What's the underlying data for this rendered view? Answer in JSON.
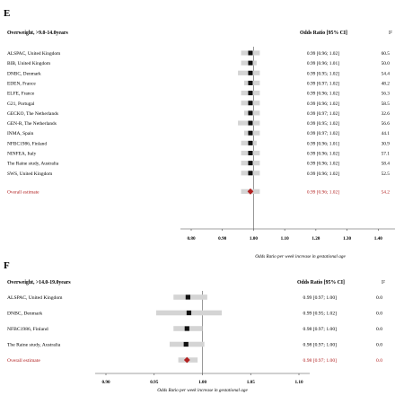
{
  "chart_data": [
    {
      "type": "forest",
      "panel_label": "E",
      "title": "Overweight, >9.0-14.0years",
      "col_header": "Odds Ratio [95% CI]",
      "i2_header": "I²",
      "xlabel": "Odds Ratio per week increase in gestational age",
      "xlim": [
        0.7,
        1.6
      ],
      "ticks": [
        "0.80",
        "0.90",
        "1.00",
        "1.10",
        "1.20",
        "1.30",
        "1.40",
        "1.50"
      ],
      "reference_line": 1.0,
      "studies": [
        {
          "name": "ALSPAC, United Kingdom",
          "or": 0.99,
          "lo": 0.96,
          "hi": 1.02,
          "ci_text": "0.99 [0.96; 1.02]",
          "i2": "60.5"
        },
        {
          "name": "BIB, United Kingdom",
          "or": 0.99,
          "lo": 0.96,
          "hi": 1.01,
          "ci_text": "0.99 [0.96; 1.01]",
          "i2": "50.0"
        },
        {
          "name": "DNBC, Denmark",
          "or": 0.99,
          "lo": 0.95,
          "hi": 1.02,
          "ci_text": "0.99 [0.95; 1.02]",
          "i2": "54.4"
        },
        {
          "name": "EDEN, France",
          "or": 0.99,
          "lo": 0.97,
          "hi": 1.02,
          "ci_text": "0.99 [0.97; 1.02]",
          "i2": "48.2"
        },
        {
          "name": "ELFE, France",
          "or": 0.99,
          "lo": 0.96,
          "hi": 1.02,
          "ci_text": "0.99 [0.96; 1.02]",
          "i2": "56.3"
        },
        {
          "name": "G21, Portugal",
          "or": 0.99,
          "lo": 0.96,
          "hi": 1.02,
          "ci_text": "0.99 [0.96; 1.02]",
          "i2": "58.5"
        },
        {
          "name": "GECKO, The Netherlands",
          "or": 0.99,
          "lo": 0.97,
          "hi": 1.02,
          "ci_text": "0.99 [0.97; 1.02]",
          "i2": "32.6"
        },
        {
          "name": "GEN-R, The Netherlands",
          "or": 0.99,
          "lo": 0.95,
          "hi": 1.02,
          "ci_text": "0.99 [0.95; 1.02]",
          "i2": "56.6"
        },
        {
          "name": "INMA, Spain",
          "or": 0.99,
          "lo": 0.97,
          "hi": 1.02,
          "ci_text": "0.99 [0.97; 1.02]",
          "i2": "44.1"
        },
        {
          "name": "NFBC1986, Finland",
          "or": 0.99,
          "lo": 0.96,
          "hi": 1.01,
          "ci_text": "0.99 [0.96; 1.01]",
          "i2": "30.9"
        },
        {
          "name": "NINFEA, Italy",
          "or": 0.99,
          "lo": 0.96,
          "hi": 1.02,
          "ci_text": "0.99 [0.96; 1.02]",
          "i2": "57.1"
        },
        {
          "name": "The Raine study, Australia",
          "or": 0.99,
          "lo": 0.96,
          "hi": 1.02,
          "ci_text": "0.99 [0.96; 1.02]",
          "i2": "58.4"
        },
        {
          "name": "SWS, United Kingdom",
          "or": 0.99,
          "lo": 0.96,
          "hi": 1.02,
          "ci_text": "0.99 [0.96; 1.02]",
          "i2": "52.5"
        }
      ],
      "overall": {
        "name": "Overall estimate",
        "or": 0.99,
        "lo": 0.96,
        "hi": 1.02,
        "ci_text": "0.99 [0.96; 1.02]",
        "i2": "54.2"
      },
      "marker_color": "#111111",
      "overall_color": "#b22222",
      "ci_band_color": "#d4d4d4"
    },
    {
      "type": "forest",
      "panel_label": "F",
      "title": "Overweight, >14.0-19.0years",
      "col_header": "Odds Ratio [95% CI]",
      "i2_header": "I²",
      "xlabel": "Odds Ratio per week increase in gestational age",
      "xlim": [
        0.9,
        1.1
      ],
      "ticks": [
        "0.90",
        "0.95",
        "1.00",
        "1.05",
        "1.10"
      ],
      "reference_line": 1.0,
      "studies": [
        {
          "name": "ALSPAC, United Kingdom",
          "or": 0.985,
          "lo": 0.97,
          "hi": 1.005,
          "ci_text": "0.99 [0.97; 1.00]",
          "i2": "0.0"
        },
        {
          "name": "DNBC, Denmark",
          "or": 0.986,
          "lo": 0.952,
          "hi": 1.02,
          "ci_text": "0.99 [0.95; 1.02]",
          "i2": "0.0"
        },
        {
          "name": "NFBC1986, Finland",
          "or": 0.984,
          "lo": 0.97,
          "hi": 1.0,
          "ci_text": "0.98 [0.97; 1.00]",
          "i2": "0.0"
        },
        {
          "name": "The Raine study, Australia",
          "or": 0.983,
          "lo": 0.966,
          "hi": 1.002,
          "ci_text": "0.98 [0.97; 1.00]",
          "i2": "0.0"
        }
      ],
      "overall": {
        "name": "Overall estimate",
        "or": 0.984,
        "lo": 0.975,
        "hi": 0.995,
        "ci_text": "0.98 [0.97; 1.00]",
        "i2": "0.0"
      },
      "marker_color": "#111111",
      "overall_color": "#b22222",
      "ci_band_color": "#d4d4d4"
    }
  ]
}
